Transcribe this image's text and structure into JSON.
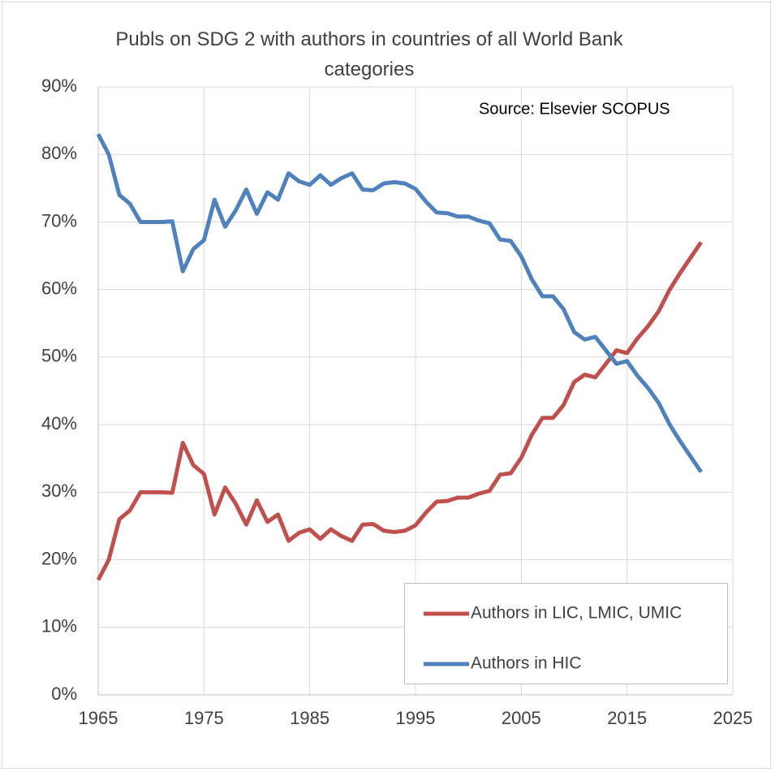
{
  "chart_data": {
    "type": "line",
    "title": "Publs on SDG 2 with authors in countries of all World Bank categories",
    "annotation": "Source: Elsevier SCOPUS",
    "x": [
      1965,
      1966,
      1967,
      1968,
      1969,
      1970,
      1971,
      1972,
      1973,
      1974,
      1975,
      1976,
      1977,
      1978,
      1979,
      1980,
      1981,
      1982,
      1983,
      1984,
      1985,
      1986,
      1987,
      1988,
      1989,
      1990,
      1991,
      1992,
      1993,
      1994,
      1995,
      1996,
      1997,
      1998,
      1999,
      2000,
      2001,
      2002,
      2003,
      2004,
      2005,
      2006,
      2007,
      2008,
      2009,
      2010,
      2011,
      2012,
      2013,
      2014,
      2015,
      2016,
      2017,
      2018,
      2019,
      2020,
      2021,
      2022
    ],
    "series": [
      {
        "name": "Authors in LIC, LMIC, UMIC",
        "color": "#c0504d",
        "values": [
          17,
          20,
          26,
          27.3,
          30,
          30,
          30,
          29.9,
          37.3,
          34,
          32.7,
          26.7,
          30.7,
          28.3,
          25.2,
          28.8,
          25.6,
          26.7,
          22.8,
          24,
          24.5,
          23.1,
          24.5,
          23.5,
          22.8,
          25.2,
          25.3,
          24.3,
          24.1,
          24.3,
          25.1,
          27,
          28.6,
          28.7,
          29.2,
          29.2,
          29.8,
          30.2,
          32.6,
          32.8,
          35.1,
          38.5,
          41,
          41,
          42.9,
          46.3,
          47.4,
          47,
          49,
          51,
          50.6,
          52.8,
          54.6,
          56.8,
          59.9,
          62.4,
          64.7,
          67
        ]
      },
      {
        "name": "Authors in HIC",
        "color": "#4f81bd",
        "values": [
          83,
          80,
          74,
          72.7,
          70,
          70,
          70,
          70.1,
          62.7,
          66,
          67.3,
          73.3,
          69.3,
          71.7,
          74.8,
          71.2,
          74.4,
          73.3,
          77.2,
          76,
          75.5,
          76.9,
          75.5,
          76.5,
          77.2,
          74.8,
          74.7,
          75.7,
          75.9,
          75.7,
          74.9,
          73,
          71.4,
          71.3,
          70.8,
          70.8,
          70.2,
          69.8,
          67.4,
          67.2,
          64.9,
          61.5,
          59,
          59,
          57.1,
          53.7,
          52.6,
          53,
          51,
          49,
          49.4,
          47.2,
          45.4,
          43.2,
          40.1,
          37.6,
          35.3,
          33
        ]
      }
    ],
    "xlim": [
      1965,
      2025
    ],
    "xticks": [
      1965,
      1975,
      1985,
      1995,
      2005,
      2015,
      2025
    ],
    "ylim": [
      0,
      90
    ],
    "yticks": [
      {
        "value": 0,
        "label": "0%"
      },
      {
        "value": 10,
        "label": "10%"
      },
      {
        "value": 20,
        "label": "20%"
      },
      {
        "value": 30,
        "label": "30%"
      },
      {
        "value": 40,
        "label": "40%"
      },
      {
        "value": 50,
        "label": "50%"
      },
      {
        "value": 60,
        "label": "60%"
      },
      {
        "value": 70,
        "label": "70%"
      },
      {
        "value": 80,
        "label": "80%"
      },
      {
        "value": 90,
        "label": "90%"
      }
    ],
    "grid": true,
    "legend": "lower right"
  }
}
